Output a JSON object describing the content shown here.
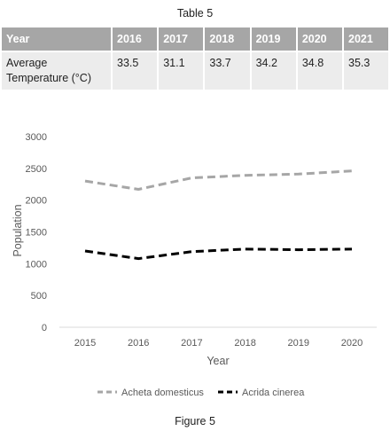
{
  "table": {
    "title": "Table 5",
    "header_label": "Year",
    "row_label": "Average Temperature (°C)",
    "years": [
      "2016",
      "2017",
      "2018",
      "2019",
      "2020",
      "2021"
    ],
    "temperatures": [
      "33.5",
      "31.1",
      "33.7",
      "34.2",
      "34.8",
      "35.3"
    ]
  },
  "chart_data": {
    "type": "line",
    "x": [
      2015,
      2016,
      2017,
      2018,
      2019,
      2020
    ],
    "xlabel": "Year",
    "ylabel": "Population",
    "ylim": [
      0,
      3000
    ],
    "yticks": [
      0,
      500,
      1000,
      1500,
      2000,
      2500,
      3000
    ],
    "grid": false,
    "legend_position": "bottom",
    "series": [
      {
        "name": "Acheta domesticus",
        "values": [
          2300,
          2170,
          2350,
          2390,
          2410,
          2460
        ],
        "color": "#a6a6a6",
        "style": "dashed"
      },
      {
        "name": "Acrida cinerea",
        "values": [
          1200,
          1080,
          1190,
          1230,
          1220,
          1230
        ],
        "color": "#000000",
        "style": "dashed"
      }
    ]
  },
  "caption": "Figure 5"
}
